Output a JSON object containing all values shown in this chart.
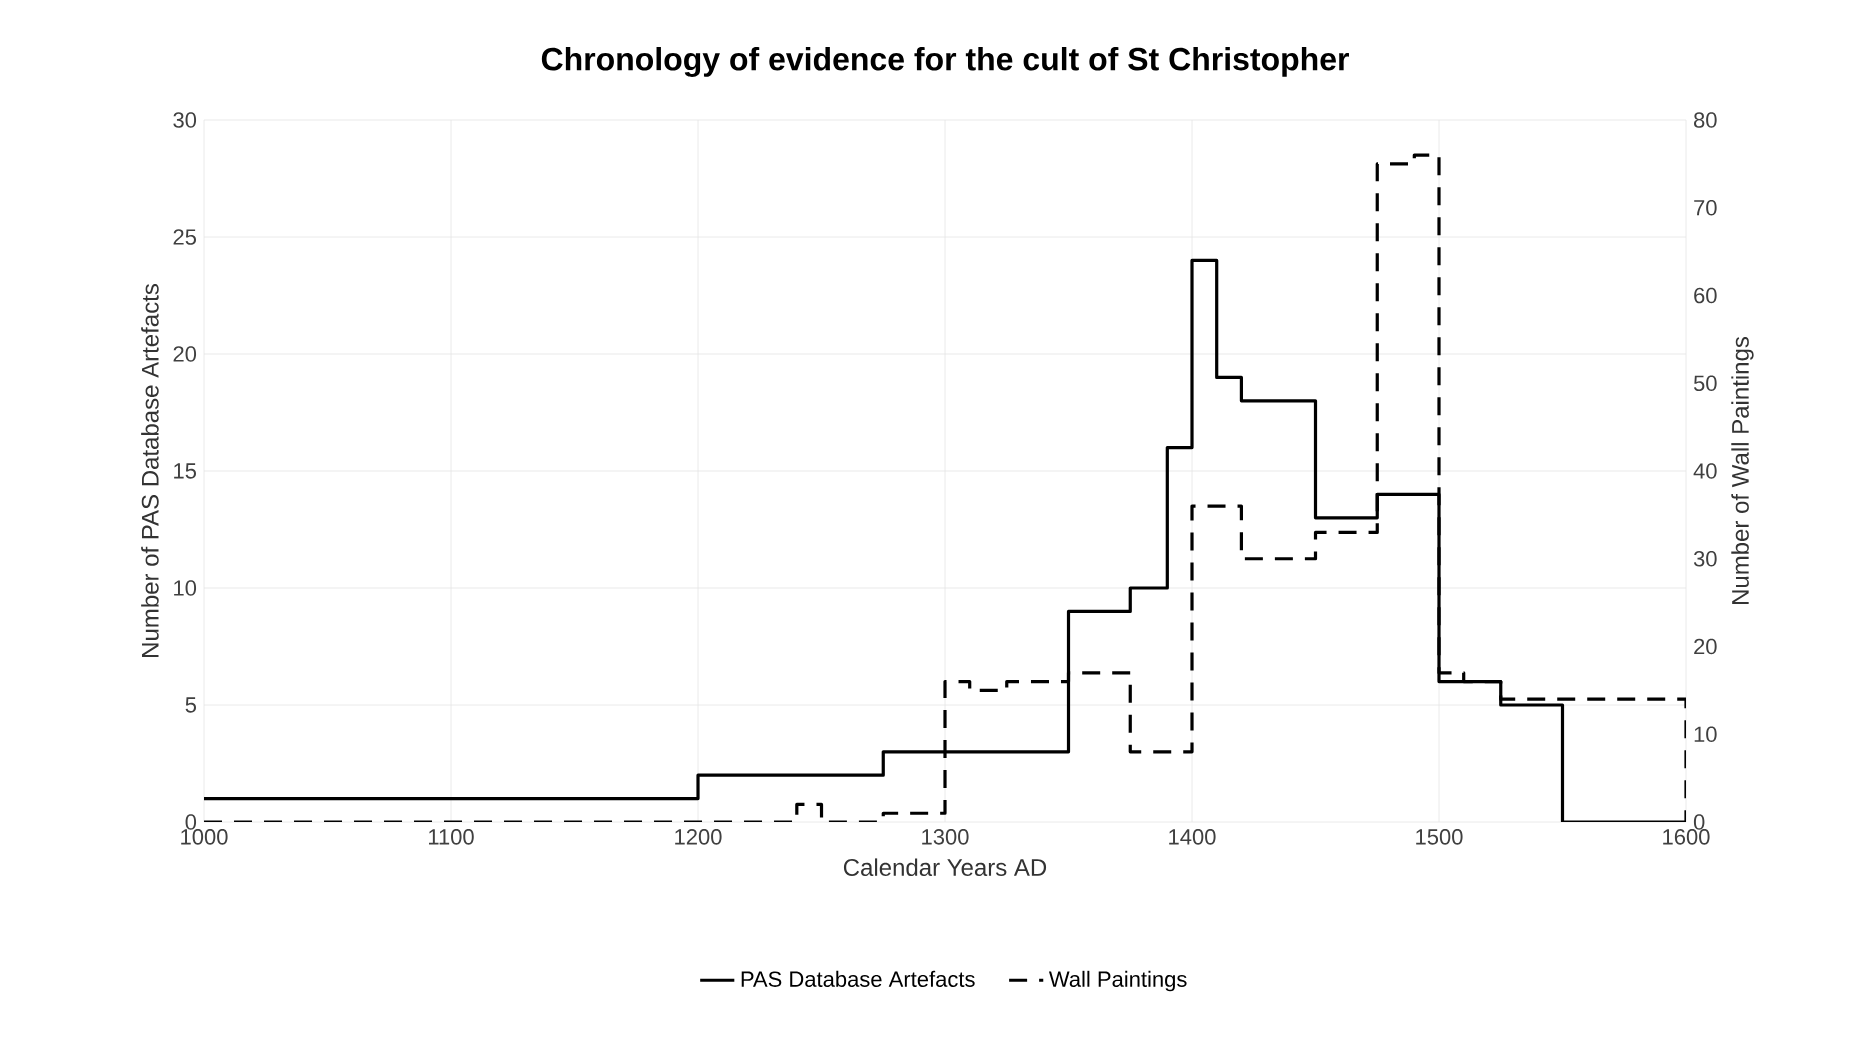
{
  "chart_data": {
    "type": "step",
    "title": "Chronology of evidence for the cult of St Christopher",
    "xlabel": "Calendar Years AD",
    "ylabel": "Number of PAS Database Artefacts",
    "y2label": "Number of Wall Paintings",
    "xlim": [
      1000,
      1600
    ],
    "xticks": [
      1000,
      1100,
      1200,
      1300,
      1400,
      1500,
      1600
    ],
    "ylim": [
      0,
      30
    ],
    "yticks": [
      0,
      5,
      10,
      15,
      20,
      25,
      30
    ],
    "y2lim": [
      0,
      80
    ],
    "y2ticks": [
      0,
      10,
      20,
      30,
      40,
      50,
      60,
      70,
      80
    ],
    "grid": true,
    "legend": "bottom",
    "series": [
      {
        "name": "PAS Database Artefacts",
        "color": "#000000",
        "line_style": "solid",
        "x": [
          1000,
          1200,
          1275,
          1350,
          1375,
          1390,
          1400,
          1410,
          1420,
          1450,
          1475,
          1500,
          1525,
          1550,
          1600
        ],
        "values": [
          1,
          2,
          3,
          9,
          10,
          16,
          24,
          19,
          18,
          13,
          14,
          6,
          5,
          0,
          0
        ]
      },
      {
        "name": "Wall Paintings",
        "color": "#000000",
        "line_style": "dashed",
        "axis": "y2",
        "x": [
          1000,
          1240,
          1250,
          1275,
          1300,
          1310,
          1325,
          1350,
          1375,
          1400,
          1420,
          1450,
          1475,
          1490,
          1500,
          1510,
          1525,
          1600
        ],
        "values": [
          0,
          2,
          0,
          1,
          16,
          15,
          16,
          17,
          8,
          36,
          30,
          33,
          75,
          76,
          17,
          16,
          14,
          0
        ]
      }
    ]
  }
}
